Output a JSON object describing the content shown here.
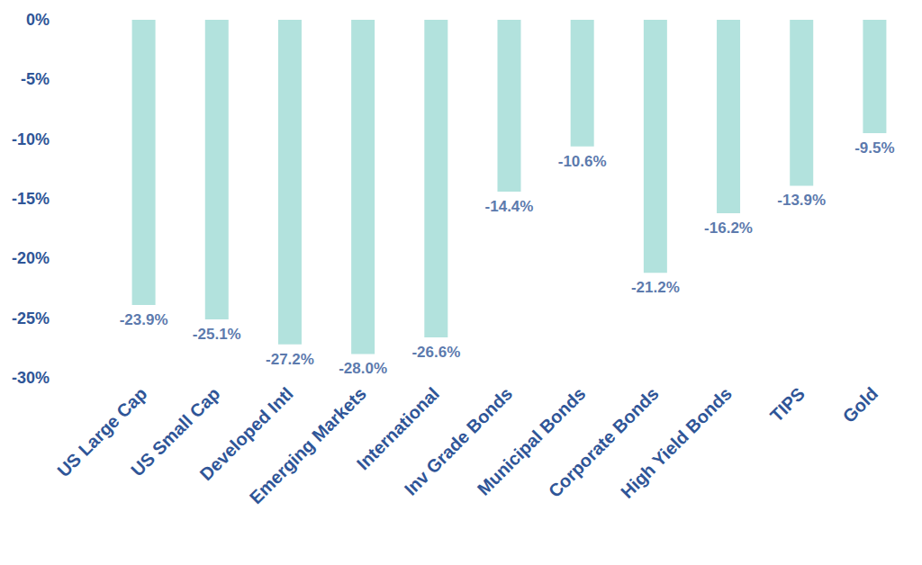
{
  "chart_data": {
    "type": "bar",
    "categories": [
      "US Large Cap",
      "US Small Cap",
      "Developed Intl",
      "Emerging Markets",
      "International",
      "Inv Grade Bonds",
      "Municipal Bonds",
      "Corporate Bonds",
      "High Yield Bonds",
      "TIPS",
      "Gold"
    ],
    "values": [
      -23.9,
      -25.1,
      -27.2,
      -28.0,
      -26.6,
      -14.4,
      -10.6,
      -21.2,
      -16.2,
      -13.9,
      -9.5
    ],
    "value_labels": [
      "-23.9%",
      "-25.1%",
      "-27.2%",
      "-28.0%",
      "-26.6%",
      "-14.4%",
      "-10.6%",
      "-21.2%",
      "-16.2%",
      "-13.9%",
      "-9.5%"
    ],
    "color": "#b2e2dd",
    "ylim": [
      -30,
      0
    ],
    "yticks": [
      {
        "value": 0,
        "label": "0%"
      },
      {
        "value": -5,
        "label": "-5%"
      },
      {
        "value": -10,
        "label": "-10%"
      },
      {
        "value": -15,
        "label": "-15%"
      },
      {
        "value": -20,
        "label": "-20%"
      },
      {
        "value": -25,
        "label": "-25%"
      },
      {
        "value": -30,
        "label": "-30%"
      }
    ],
    "grid": false,
    "data_labels": true
  }
}
